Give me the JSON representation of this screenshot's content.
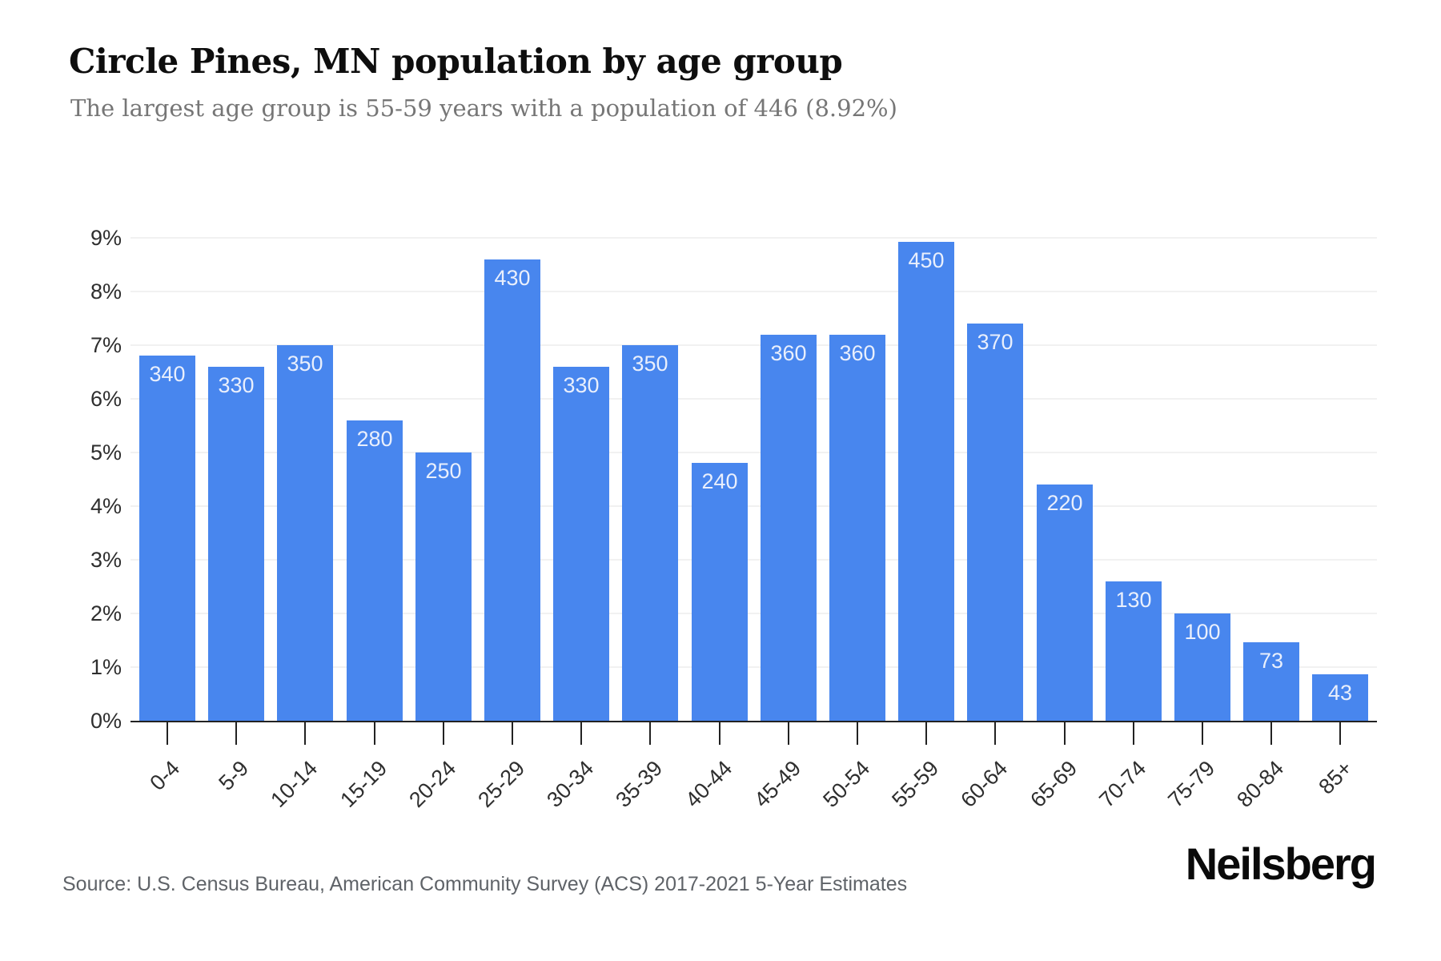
{
  "page": {
    "title": "Circle Pines, MN population by age group",
    "subtitle": "The largest age group is 55-59 years with a population of 446 (8.92%)",
    "source": "Source: U.S. Census Bureau, American Community Survey (ACS) 2017-2021 5-Year Estimates",
    "brand": "Neilsberg"
  },
  "chart_data": {
    "type": "bar",
    "title": "Circle Pines, MN population by age group",
    "subtitle": "The largest age group is 55-59 years with a population of 446 (8.92%)",
    "categories": [
      "0-4",
      "5-9",
      "10-14",
      "15-19",
      "20-24",
      "25-29",
      "30-34",
      "35-39",
      "40-44",
      "45-49",
      "50-54",
      "55-59",
      "60-64",
      "65-69",
      "70-74",
      "75-79",
      "80-84",
      "85+"
    ],
    "values": [
      340,
      330,
      350,
      280,
      250,
      430,
      330,
      350,
      240,
      360,
      360,
      450,
      370,
      220,
      130,
      100,
      73,
      43
    ],
    "percents": [
      6.8,
      6.6,
      7.0,
      5.6,
      5.0,
      8.6,
      6.6,
      7.0,
      4.8,
      7.2,
      7.2,
      8.92,
      7.4,
      4.4,
      2.6,
      2.0,
      1.46,
      0.86
    ],
    "value_labels": [
      "340",
      "330",
      "350",
      "280",
      "250",
      "430",
      "330",
      "350",
      "240",
      "360",
      "360",
      "450",
      "370",
      "220",
      "130",
      "100",
      "73",
      "43"
    ],
    "y_ticks": [
      "0%",
      "1%",
      "2%",
      "3%",
      "4%",
      "5%",
      "6%",
      "7%",
      "8%",
      "9%"
    ],
    "ylim": [
      0,
      9
    ],
    "xlabel": "",
    "ylabel": "",
    "grid": true,
    "legend": "none",
    "colors": {
      "bar": "#4886ee",
      "bar_label": "#e9effc",
      "grid": "#f1f1f1",
      "axis": "#222222",
      "tick_label": "#2e2e2e",
      "title": "#0e0e0e",
      "subtitle": "#767676",
      "source": "#5f6368",
      "background": "#ffffff"
    }
  }
}
